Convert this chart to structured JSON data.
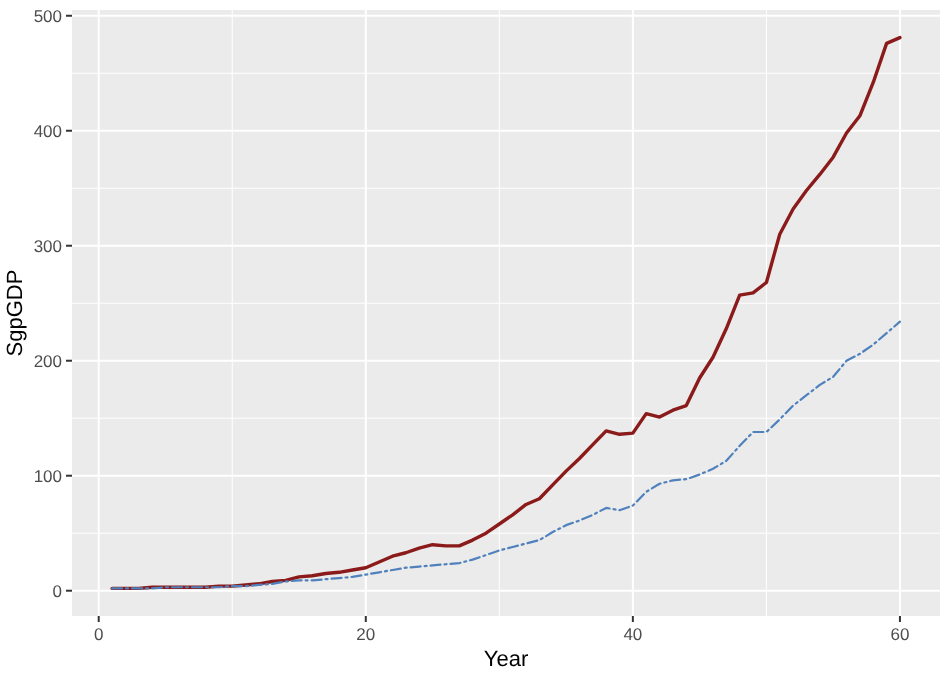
{
  "chart_data": {
    "type": "line",
    "xlabel": "Year",
    "ylabel": "SgpGDP",
    "x": [
      1,
      2,
      3,
      4,
      5,
      6,
      7,
      8,
      9,
      10,
      11,
      12,
      13,
      14,
      15,
      16,
      17,
      18,
      19,
      20,
      21,
      22,
      23,
      24,
      25,
      26,
      27,
      28,
      29,
      30,
      31,
      32,
      33,
      34,
      35,
      36,
      37,
      38,
      39,
      40,
      41,
      42,
      43,
      44,
      45,
      46,
      47,
      48,
      49,
      50,
      51,
      52,
      53,
      54,
      55,
      56,
      57,
      58,
      59,
      60
    ],
    "series": [
      {
        "color": "#8b1a1a",
        "line_style": "solid",
        "values": [
          2,
          2,
          2,
          3,
          3,
          3,
          3,
          3,
          4,
          4,
          5,
          6,
          8,
          9,
          12,
          13,
          15,
          16,
          18,
          20,
          25,
          30,
          33,
          37,
          40,
          39,
          39,
          44,
          50,
          58,
          66,
          75,
          80,
          92,
          104,
          115,
          127,
          139,
          136,
          137,
          154,
          151,
          157,
          161,
          185,
          203,
          228,
          257,
          259,
          268,
          310,
          332,
          348,
          362,
          377,
          398,
          413,
          442,
          476,
          481
        ]
      },
      {
        "color": "#4f81bd",
        "line_style": "dashed",
        "values": [
          2,
          2,
          2,
          2,
          3,
          3,
          3,
          3,
          3,
          4,
          4,
          5,
          6,
          8,
          9,
          9,
          10,
          11,
          12,
          14,
          16,
          18,
          20,
          21,
          22,
          23,
          24,
          27,
          31,
          35,
          38,
          41,
          44,
          51,
          57,
          61,
          66,
          72,
          70,
          74,
          86,
          93,
          96,
          97,
          101,
          106,
          113,
          126,
          138,
          138,
          149,
          161,
          170,
          179,
          186,
          200,
          206,
          214,
          224,
          234
        ]
      }
    ],
    "xlim": [
      -2,
      63
    ],
    "ylim": [
      -22,
      505
    ],
    "xticks": [
      0,
      20,
      40,
      60
    ],
    "yticks": [
      0,
      100,
      200,
      300,
      400,
      500
    ],
    "grid": true,
    "marker": "none"
  }
}
